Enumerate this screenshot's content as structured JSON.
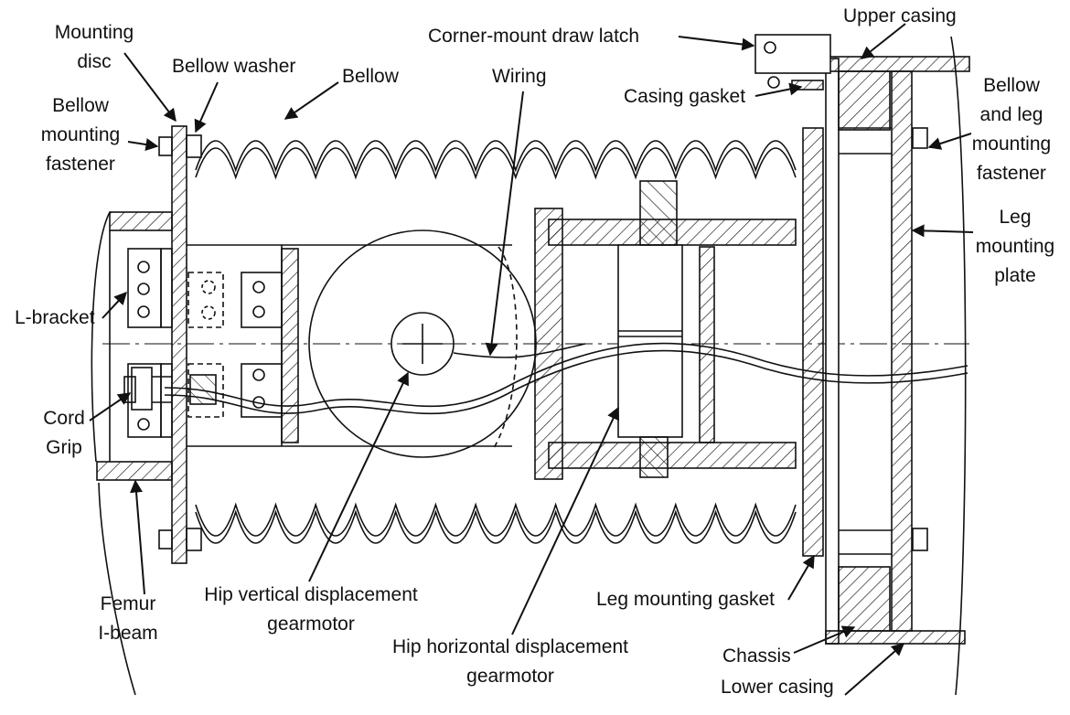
{
  "labels": {
    "mounting_disc": [
      "Mounting",
      "disc"
    ],
    "bellow_washer": "Bellow washer",
    "bellow": "Bellow",
    "wiring": "Wiring",
    "corner_latch": "Corner-mount draw latch",
    "upper_casing": "Upper casing",
    "casing_gasket": "Casing gasket",
    "bellow_mounting_fastener": [
      "Bellow",
      "mounting",
      "fastener"
    ],
    "bellow_leg_fastener": [
      "Bellow",
      "and leg",
      "mounting",
      "fastener"
    ],
    "leg_mounting_plate": [
      "Leg",
      "mounting",
      "plate"
    ],
    "l_bracket": "L-bracket",
    "cord_grip": [
      "Cord",
      "Grip"
    ],
    "femur_ibeam": [
      "Femur",
      "I-beam"
    ],
    "hip_vertical": [
      "Hip vertical displacement",
      "gearmotor"
    ],
    "hip_horizontal": [
      "Hip horizontal displacement",
      "gearmotor"
    ],
    "leg_mounting_gasket": "Leg mounting gasket",
    "chassis": "Chassis",
    "lower_casing": "Lower casing"
  },
  "colors": {
    "ink": "#111111",
    "paper": "#ffffff"
  }
}
